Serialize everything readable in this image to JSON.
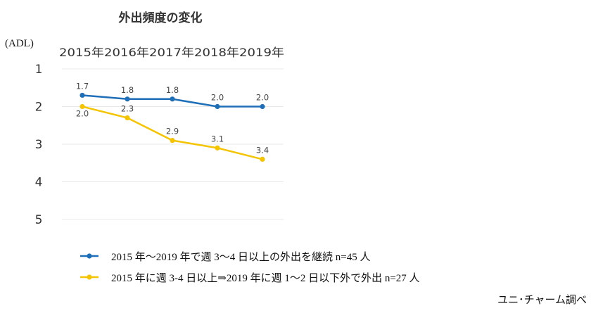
{
  "chart_data": {
    "type": "line",
    "title": "外出頻度の変化",
    "ylabel": "(ADL)",
    "categories": [
      "2015年",
      "2016年",
      "2017年",
      "2018年",
      "2019年"
    ],
    "y_ticks": [
      "1",
      "2",
      "3",
      "4",
      "5"
    ],
    "ylim": [
      1,
      5
    ],
    "y_inverted": true,
    "grid": true,
    "legend_position": "bottom",
    "series": [
      {
        "name": "2015 年～2019 年で週 3～4 日以上の外出を継続  n=45 人",
        "color": "#1f6fb8",
        "values": [
          1.7,
          1.8,
          1.8,
          2.0,
          2.0
        ],
        "labels": [
          "1.7",
          "1.8",
          "1.8",
          "2.0",
          "2.0"
        ]
      },
      {
        "name": "2015 年に週 3-4 日以上⇒2019 年に週 1～2 日以下外で外出  n=27 人",
        "color": "#f5c400",
        "values": [
          2.0,
          2.3,
          2.9,
          3.1,
          3.4
        ],
        "labels": [
          "2.0",
          "2.3",
          "2.9",
          "3.1",
          "3.4"
        ]
      }
    ],
    "source": "ユニ･チャーム調べ"
  }
}
